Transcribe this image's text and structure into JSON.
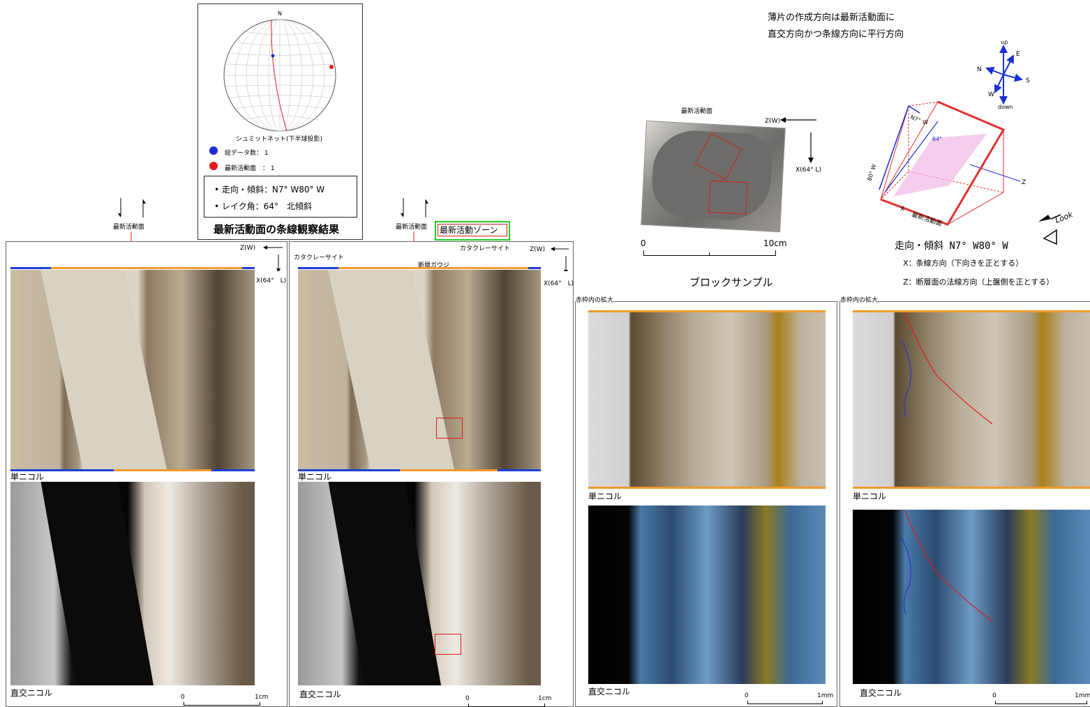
{
  "stereonet": {
    "north": "N",
    "caption": "シュミットネット(下半球投影)",
    "legend_total": "総データ数： 1",
    "legend_latest": "最新活動面　： 1",
    "strike_dip": "走向・傾斜：N7° W80° W",
    "rake": "レイク角：64°　北傾斜",
    "title": "最新活動面の条線観察結果"
  },
  "note": {
    "line1": "薄片の作成方向は最新活動面に",
    "line2": "直交方向かつ条線方向に平行方向"
  },
  "compass": {
    "up": "up",
    "down": "down",
    "N": "N",
    "E": "E",
    "S": "S",
    "W": "W"
  },
  "block": {
    "plane_label": "最新活動面",
    "z": "Z(W)",
    "x": "X(64° L)",
    "scale_0": "0",
    "scale_10": "10cm",
    "caption": "ブロックサンプル"
  },
  "diagram3d": {
    "n7": "N7°",
    "w": "W",
    "angle": "64°",
    "dip": "80° W",
    "x": "X",
    "plane": "最新活動面",
    "z": "Z",
    "look": "Look",
    "strike_dip": "走向・傾斜 N7° W80° W",
    "xdef": "X：条線方向（下向きを正とする）",
    "zdef": "Z：断層面の法線方向（上盤側を正とする）"
  },
  "panel1": {
    "plane": "最新活動面",
    "z": "Z(W)",
    "x": "X(64°　L)",
    "single": "単ニコル",
    "cross": "直交ニコル",
    "s0": "0",
    "s1": "1cm"
  },
  "panel2": {
    "plane": "最新活動面",
    "zone": "最新活動ゾーン",
    "cata1": "カタクレーサイト",
    "cata2": "カタクレーサイト",
    "gouge": "断層ガウジ",
    "z": "Z(W)",
    "x": "X(64°　L)",
    "single": "単ニコル",
    "cross": "直交ニコル",
    "s0": "0",
    "s1": "1cm"
  },
  "panel3": {
    "header": "赤枠内の拡大",
    "single": "単ニコル",
    "cross": "直交ニコル",
    "s0": "0",
    "s1": "1mm"
  },
  "panel4": {
    "header": "赤枠内の拡大",
    "single": "単ニコル",
    "cross": "直交ニコル",
    "s0": "0",
    "s1": "1mm"
  }
}
